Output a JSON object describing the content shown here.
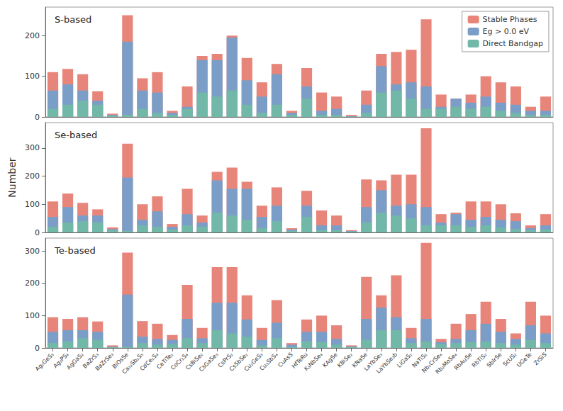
{
  "chart_data": [
    {
      "type": "bar",
      "title": "S-based",
      "categories": [
        "Ag₂GeS₃",
        "Ag₃PS₄",
        "AgGaS₂",
        "BaZrS₃",
        "BaZrSe₃",
        "BiOsSe",
        "Ca₂₂Sb₂S₅",
        "CdCe₂S₄",
        "CeTiTe₂",
        "CoCr₂S₄",
        "CsBiSe₂",
        "CsGaSe₃",
        "CsPrS₂",
        "CsSbSe₂",
        "Cu₂GeS₃",
        "Cu₃SbS₄",
        "CuAsS",
        "HfTeRu",
        "K₃NbSe₄",
        "KAgSe",
        "KBiSe₂",
        "KNaSe",
        "LaYbSe₃",
        "LaYbSe₃b",
        "LiGaS₂",
        "NaTiS₂",
        "Nb₂CrSe₄",
        "Rb₂MoSe₄",
        "RbAuSe",
        "RbTiS₂",
        "SbIrSe",
        "ScUS₂",
        "UGeTe",
        "ZrSiS"
      ],
      "series": [
        {
          "name": "Stable Phases",
          "color": "#E8857A",
          "values": [
            110,
            118,
            105,
            63,
            8,
            250,
            95,
            110,
            15,
            75,
            150,
            155,
            200,
            145,
            85,
            130,
            15,
            120,
            60,
            50,
            5,
            65,
            155,
            160,
            165,
            240,
            55,
            45,
            55,
            100,
            85,
            75,
            25,
            50
          ]
        },
        {
          "name": "Eg > 0.0 eV",
          "color": "#7B9EC8",
          "values": [
            65,
            80,
            65,
            40,
            5,
            185,
            65,
            60,
            10,
            25,
            140,
            140,
            195,
            90,
            50,
            105,
            10,
            75,
            15,
            20,
            2,
            30,
            125,
            80,
            85,
            75,
            25,
            45,
            35,
            50,
            35,
            30,
            15,
            15
          ]
        },
        {
          "name": "Direct Bandgap",
          "color": "#72B8A8",
          "values": [
            20,
            30,
            40,
            30,
            3,
            5,
            20,
            10,
            5,
            20,
            60,
            50,
            65,
            30,
            10,
            30,
            5,
            45,
            5,
            5,
            1,
            10,
            60,
            65,
            45,
            20,
            20,
            25,
            20,
            25,
            15,
            10,
            5,
            5
          ]
        }
      ],
      "ylim": [
        0,
        270
      ],
      "yticks": [
        0,
        100,
        200
      ],
      "grid": false,
      "legend": "upper right",
      "tick_labels": "y"
    },
    {
      "type": "bar",
      "title": "Se-based",
      "ylabel": "Number",
      "categories": [
        "Ag₂GeS₃",
        "Ag₃PS₄",
        "AgGaS₂",
        "BaZrS₃",
        "BaZrSe₃",
        "BiOsSe",
        "Ca₂₂Sb₂S₅",
        "CdCe₂S₄",
        "CeTiTe₂",
        "CoCr₂S₄",
        "CsBiSe₂",
        "CsGaSe₃",
        "CsPrS₂",
        "CsSbSe₂",
        "Cu₂GeS₃",
        "Cu₃SbS₄",
        "CuAsS",
        "HfTeRu",
        "K₃NbSe₄",
        "KAgSe",
        "KBiSe₂",
        "KNaSe",
        "LaYbSe₃",
        "LaYbSe₃b",
        "LiGaS₂",
        "NaTiS₂",
        "Nb₂CrSe₄",
        "Rb₂MoSe₄",
        "RbAuSe",
        "RbTiS₂",
        "SbIrSe",
        "ScUS₂",
        "UGeTe",
        "ZrSiS"
      ],
      "series": [
        {
          "name": "Stable Phases",
          "color": "#E8857A",
          "values": [
            110,
            138,
            105,
            82,
            18,
            315,
            100,
            128,
            30,
            155,
            60,
            215,
            230,
            180,
            95,
            160,
            15,
            148,
            78,
            60,
            8,
            188,
            185,
            205,
            205,
            370,
            65,
            70,
            110,
            110,
            100,
            68,
            25,
            65
          ]
        },
        {
          "name": "Eg > 0.0 eV",
          "color": "#7B9EC8",
          "values": [
            55,
            90,
            60,
            60,
            12,
            195,
            45,
            75,
            20,
            65,
            35,
            185,
            155,
            155,
            55,
            95,
            10,
            95,
            25,
            25,
            5,
            90,
            150,
            95,
            100,
            90,
            35,
            65,
            45,
            55,
            45,
            40,
            15,
            25
          ]
        },
        {
          "name": "Direct Bandgap",
          "color": "#72B8A8",
          "values": [
            20,
            35,
            40,
            35,
            8,
            5,
            25,
            20,
            10,
            25,
            20,
            70,
            60,
            45,
            15,
            40,
            5,
            55,
            8,
            8,
            3,
            35,
            70,
            60,
            50,
            25,
            25,
            25,
            20,
            25,
            18,
            12,
            8,
            10
          ]
        }
      ],
      "ylim": [
        0,
        390
      ],
      "yticks": [
        0,
        100,
        200,
        300
      ],
      "grid": false,
      "tick_labels": "y"
    },
    {
      "type": "bar",
      "title": "Te-based",
      "categories": [
        "Ag₂GeS₃",
        "Ag₃PS₄",
        "AgGaS₂",
        "BaZrS₃",
        "BaZrSe₃",
        "BiOsSe",
        "Ca₂₂Sb₂S₅",
        "CdCe₂S₄",
        "CeTiTe₂",
        "CoCr₂S₄",
        "CsBiSe₂",
        "CsGaSe₃",
        "CsPrS₂",
        "CsSbSe₂",
        "Cu₂GeS₃",
        "Cu₃SbS₄",
        "CuAsS",
        "HfTeRu",
        "K₃NbSe₄",
        "KAgSe",
        "KBiSe₂",
        "KNaSe",
        "LaYbSe₃",
        "LaYbSe₃b",
        "LiGaS₂",
        "NaTiS₂",
        "Nb₂CrSe₄",
        "Rb₂MoSe₄",
        "RbAuSe",
        "RbTiS₂",
        "SbIrSe",
        "ScUS₂",
        "UGeTe",
        "ZrSiS"
      ],
      "series": [
        {
          "name": "Stable Phases",
          "color": "#E8857A",
          "values": [
            95,
            90,
            95,
            82,
            8,
            295,
            83,
            75,
            40,
            195,
            62,
            250,
            250,
            163,
            62,
            148,
            15,
            88,
            100,
            70,
            8,
            220,
            163,
            225,
            62,
            325,
            28,
            75,
            105,
            143,
            90,
            45,
            143,
            100
          ]
        },
        {
          "name": "Eg > 0.0 eV",
          "color": "#7B9EC8",
          "values": [
            50,
            55,
            55,
            50,
            4,
            165,
            35,
            28,
            25,
            90,
            30,
            140,
            140,
            88,
            25,
            78,
            10,
            50,
            50,
            28,
            5,
            90,
            125,
            95,
            30,
            90,
            18,
            28,
            55,
            75,
            50,
            28,
            70,
            45
          ]
        },
        {
          "name": "Direct Bandgap",
          "color": "#72B8A8",
          "values": [
            15,
            20,
            30,
            25,
            3,
            3,
            15,
            10,
            12,
            30,
            15,
            55,
            45,
            35,
            8,
            30,
            3,
            20,
            18,
            10,
            3,
            25,
            55,
            55,
            15,
            20,
            12,
            15,
            18,
            20,
            15,
            10,
            25,
            15
          ]
        }
      ],
      "ylim": [
        0,
        340
      ],
      "yticks": [
        0,
        100,
        200,
        300
      ],
      "grid": false
    }
  ]
}
